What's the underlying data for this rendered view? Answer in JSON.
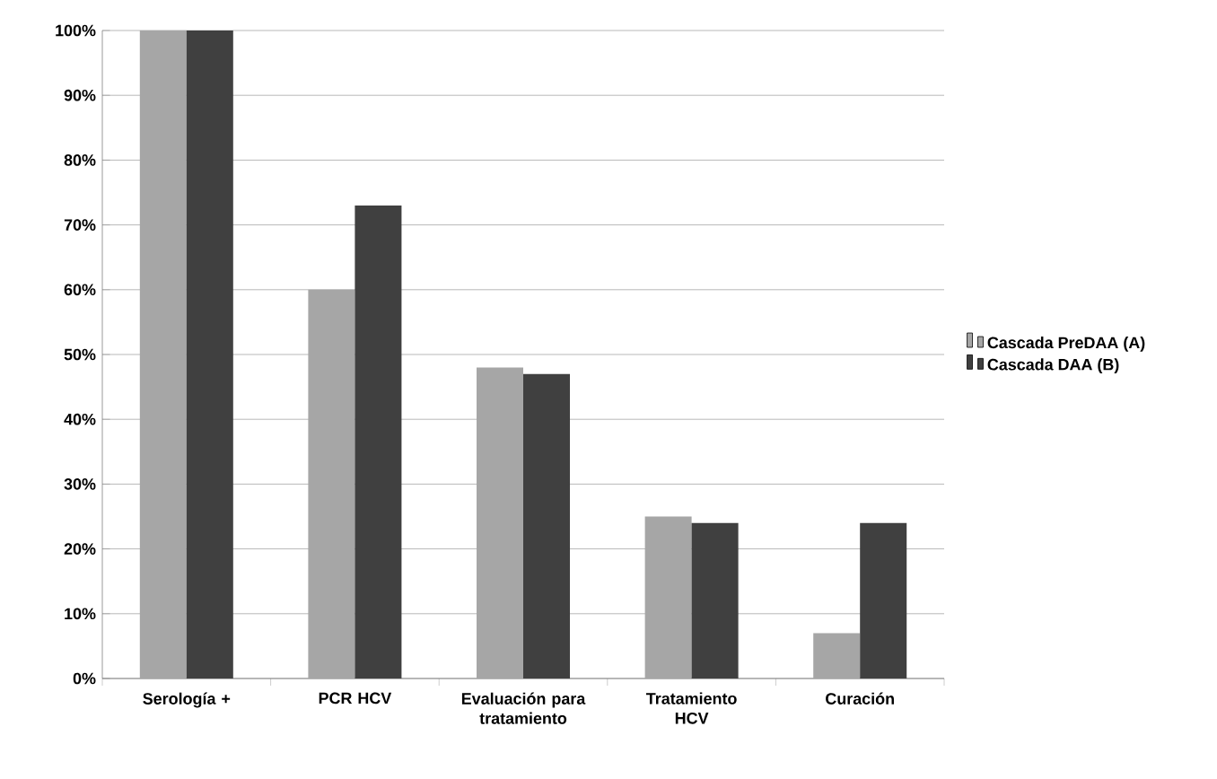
{
  "chart_data": {
    "type": "bar",
    "categories": [
      "Serología +",
      "PCR HCV",
      "Evaluación para tratamiento",
      "Tratamiento HCV",
      "Curación"
    ],
    "series": [
      {
        "name": "Cascada PreDAA (A)",
        "color": "#a6a6a6",
        "values": [
          100,
          60,
          48,
          25,
          7
        ]
      },
      {
        "name": "Cascada DAA (B)",
        "color": "#404040",
        "values": [
          100,
          73,
          47,
          24,
          24
        ]
      }
    ],
    "ylim": [
      0,
      100
    ],
    "yticks": [
      {
        "value": 0,
        "label": "0%"
      },
      {
        "value": 10,
        "label": "10%"
      },
      {
        "value": 20,
        "label": "20%"
      },
      {
        "value": 30,
        "label": "30%"
      },
      {
        "value": 40,
        "label": "40%"
      },
      {
        "value": 50,
        "label": "50%"
      },
      {
        "value": 60,
        "label": "60%"
      },
      {
        "value": 70,
        "label": "70%"
      },
      {
        "value": 80,
        "label": "80%"
      },
      {
        "value": 90,
        "label": "90%"
      },
      {
        "value": 100,
        "label": "100%"
      }
    ],
    "grid": "y",
    "legend": "right"
  }
}
